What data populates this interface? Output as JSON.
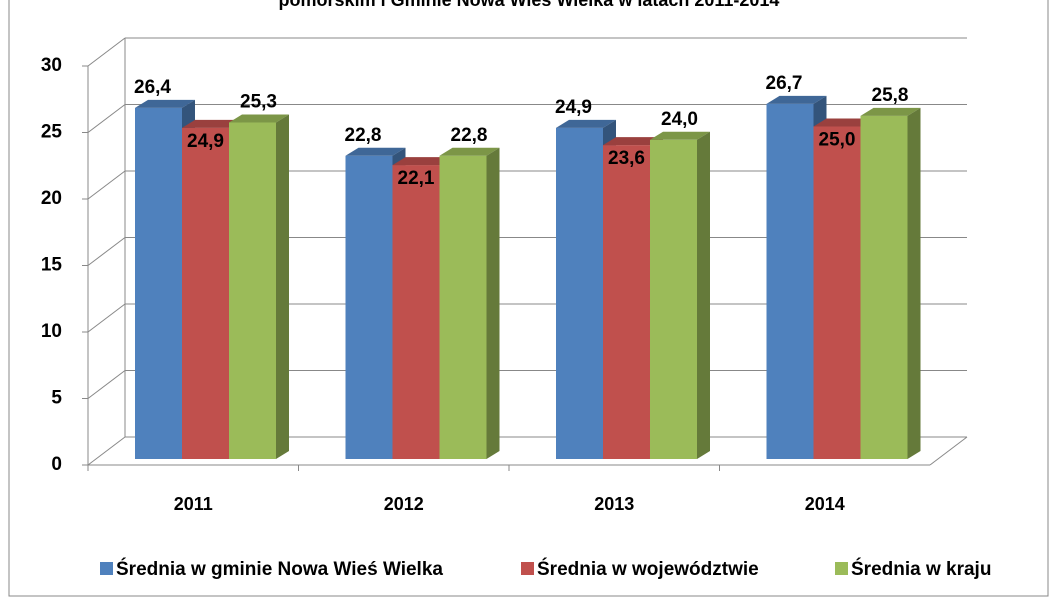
{
  "chart_data": {
    "type": "bar3d",
    "title": "pomorskim i Gminie Nowa Wieś Wielka w latach 2011-2014",
    "categories": [
      "2011",
      "2012",
      "2013",
      "2014"
    ],
    "series": [
      {
        "name": "Średnia w gminie Nowa Wieś Wielka",
        "color": "#4f81bd",
        "values": [
          26.4,
          22.8,
          24.9,
          26.7
        ],
        "value_labels": [
          "26,4",
          "22,8",
          "24,9",
          "26,7"
        ]
      },
      {
        "name": "Średnia w województwie",
        "color": "#c0504d",
        "values": [
          24.9,
          22.1,
          23.6,
          25.0
        ],
        "value_labels": [
          "24,9",
          "22,1",
          "23,6",
          "25,0"
        ]
      },
      {
        "name": "Średnia w kraju",
        "color": "#9bbb59",
        "values": [
          25.3,
          22.8,
          24.0,
          25.8
        ],
        "value_labels": [
          "25,3",
          "22,8",
          "24,0",
          "25,8"
        ]
      }
    ],
    "ylim": [
      0,
      30
    ],
    "yticks": [
      0,
      5,
      10,
      15,
      20,
      25,
      30
    ],
    "grid": true,
    "legend": "bottom"
  }
}
